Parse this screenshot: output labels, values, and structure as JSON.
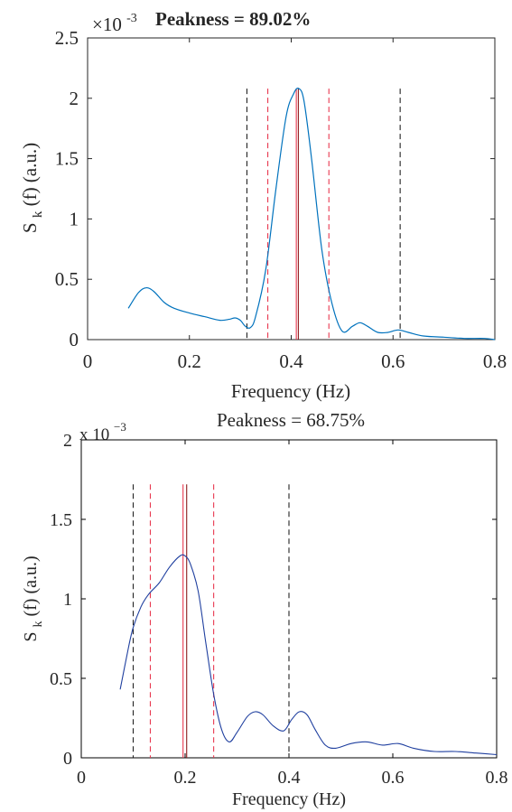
{
  "chart_data": [
    {
      "type": "line",
      "title": "Peakness = 89.02%",
      "xlabel": "Frequency (Hz)",
      "ylabel": "S",
      "ylabel_sub": "k",
      "ylabel_tail": "(f) (a.u.)",
      "exponent_base": "×10",
      "exponent_power": "-3",
      "xlim": [
        0,
        0.8
      ],
      "ylim": [
        0,
        2.5
      ],
      "xticks": [
        0,
        0.2,
        0.4,
        0.6,
        0.8
      ],
      "xtick_labels": [
        "0",
        "0.2",
        "0.4",
        "0.6",
        "0.8"
      ],
      "yticks": [
        0,
        0.5,
        1,
        1.5,
        2,
        2.5
      ],
      "ytick_labels": [
        "0",
        "0.5",
        "1",
        "1.5",
        "2",
        "2.5"
      ],
      "grid": false,
      "colors": {
        "line": "#0072bd",
        "red": "#e8384f",
        "black": "#222222",
        "dark_red": "#8b1a1a"
      },
      "vlines": [
        {
          "x": 0.313,
          "style": "dashed",
          "color": "black"
        },
        {
          "x": 0.354,
          "style": "dashed",
          "color": "red"
        },
        {
          "x": 0.41,
          "style": "solid",
          "color": "red"
        },
        {
          "x": 0.414,
          "style": "solid",
          "color": "dark_red"
        },
        {
          "x": 0.474,
          "style": "dashed",
          "color": "red"
        },
        {
          "x": 0.614,
          "style": "dashed",
          "color": "black"
        }
      ],
      "vline_top": 2.08,
      "series": [
        {
          "x": [
            0.08,
            0.1,
            0.115,
            0.13,
            0.15,
            0.17,
            0.2,
            0.23,
            0.26,
            0.28,
            0.29,
            0.3,
            0.31,
            0.32,
            0.33,
            0.35,
            0.37,
            0.39,
            0.405,
            0.415,
            0.425,
            0.44,
            0.46,
            0.48,
            0.5,
            0.52,
            0.535,
            0.55,
            0.57,
            0.59,
            0.61,
            0.63,
            0.66,
            0.7,
            0.74,
            0.78,
            0.8
          ],
          "y": [
            0.00026,
            0.00039,
            0.00043,
            0.0004,
            0.00031,
            0.00026,
            0.00022,
            0.00019,
            0.00016,
            0.00017,
            0.00018,
            0.00016,
            0.00011,
            0.0001,
            0.00019,
            0.00058,
            0.00125,
            0.00185,
            0.00204,
            0.00208,
            0.00198,
            0.0015,
            0.00075,
            0.0003,
            7e-05,
            0.00011,
            0.00014,
            0.00011,
            6e-05,
            6e-05,
            8e-05,
            6e-05,
            3e-05,
            2e-05,
            1e-05,
            1e-05,
            0.0
          ]
        }
      ]
    },
    {
      "type": "line",
      "title": "Peakness = 68.75%",
      "xlabel": "Frequency (Hz)",
      "ylabel": "S",
      "ylabel_sub": "k",
      "ylabel_tail": "(f) (a.u.)",
      "exponent_base": "x 10",
      "exponent_power": "−3",
      "xlim": [
        0,
        0.8
      ],
      "ylim": [
        0,
        2
      ],
      "xticks": [
        0,
        0.2,
        0.4,
        0.6,
        0.8
      ],
      "xtick_labels": [
        "0",
        "0.2",
        "0.4",
        "0.6",
        "0.8"
      ],
      "yticks": [
        0,
        0.5,
        1,
        1.5,
        2
      ],
      "ytick_labels": [
        "0",
        "0.5",
        "1",
        "1.5",
        "2"
      ],
      "grid": false,
      "colors": {
        "line": "#1f3f9f",
        "red": "#e8384f",
        "black": "#222222",
        "dark_red": "#8b1a1a"
      },
      "vlines": [
        {
          "x": 0.1,
          "style": "dashed",
          "color": "black"
        },
        {
          "x": 0.133,
          "style": "dashed",
          "color": "red"
        },
        {
          "x": 0.196,
          "style": "solid",
          "color": "red"
        },
        {
          "x": 0.203,
          "style": "solid",
          "color": "dark_red"
        },
        {
          "x": 0.255,
          "style": "dashed",
          "color": "red"
        },
        {
          "x": 0.4,
          "style": "dashed",
          "color": "black"
        }
      ],
      "vline_top": 1.72,
      "series": [
        {
          "x": [
            0.075,
            0.09,
            0.1,
            0.115,
            0.13,
            0.15,
            0.17,
            0.19,
            0.2,
            0.21,
            0.225,
            0.24,
            0.255,
            0.27,
            0.285,
            0.3,
            0.32,
            0.335,
            0.35,
            0.37,
            0.39,
            0.405,
            0.42,
            0.435,
            0.45,
            0.47,
            0.49,
            0.52,
            0.55,
            0.58,
            0.61,
            0.64,
            0.68,
            0.72,
            0.76,
            0.8
          ],
          "y": [
            0.00043,
            0.00068,
            0.00082,
            0.00095,
            0.00103,
            0.0011,
            0.0012,
            0.00127,
            0.00127,
            0.00122,
            0.00105,
            0.00072,
            0.0004,
            0.00018,
            0.0001,
            0.00016,
            0.00026,
            0.00029,
            0.00027,
            0.0002,
            0.00017,
            0.00024,
            0.00029,
            0.00027,
            0.00018,
            8e-05,
            6e-05,
            9e-05,
            0.0001,
            8e-05,
            9e-05,
            6e-05,
            4e-05,
            4e-05,
            3e-05,
            2e-05
          ]
        }
      ]
    }
  ]
}
